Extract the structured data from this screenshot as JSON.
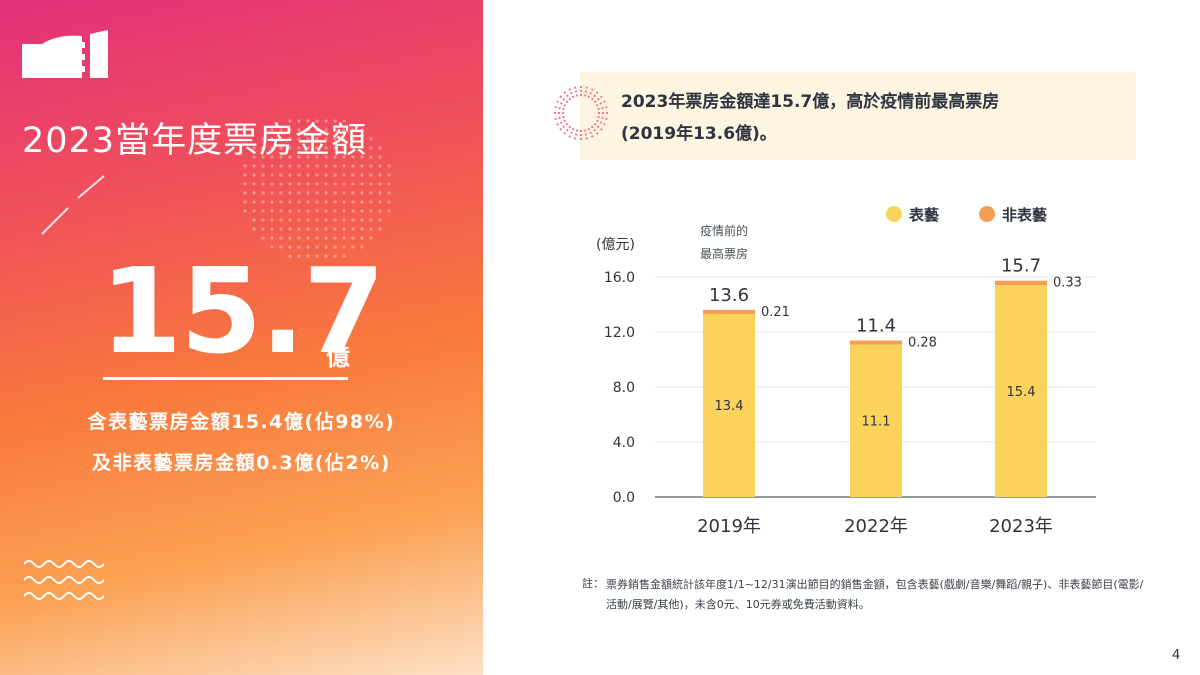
{
  "left_panel": {
    "title": "2023當年度票房金額",
    "big_value": "15.7",
    "big_unit": "億",
    "line1": "含表藝票房金額15.4億(佔98%)",
    "line2": "及非表藝票房金額0.3億(佔2%)"
  },
  "callout": {
    "line1": "2023年票房金額達15.7億，高於疫情前最高票房",
    "line2": "(2019年13.6億)。"
  },
  "colors": {
    "performing_arts": "#fbd35b",
    "non_performing_arts": "#f59e52",
    "axis": "#2f3440",
    "grid": "#e6e6e6"
  },
  "chart_data": {
    "type": "bar",
    "stacked": true,
    "categories": [
      "2019年",
      "2022年",
      "2023年"
    ],
    "series": [
      {
        "name": "表藝",
        "values": [
          13.4,
          11.1,
          15.4
        ]
      },
      {
        "name": "非表藝",
        "values": [
          0.21,
          0.28,
          0.33
        ]
      }
    ],
    "totals": [
      "13.6",
      "11.4",
      "15.7"
    ],
    "segment_labels": [
      "13.4",
      "11.1",
      "15.4"
    ],
    "top_labels": [
      "0.21",
      "0.28",
      "0.33"
    ],
    "ylabel": "(億元)",
    "ylim": [
      0,
      16
    ],
    "yticks": [
      "0.0",
      "4.0",
      "8.0",
      "12.0",
      "16.0"
    ],
    "ytick_values": [
      0,
      4,
      8,
      12,
      16
    ],
    "annotation": [
      "疫情前的",
      "最高票房"
    ],
    "legend_position": "top-right",
    "grid": true
  },
  "note": {
    "label": "註：",
    "text": "票券銷售金額統計該年度1/1~12/31演出節目的銷售金額，包含表藝(戲劇/音樂/舞蹈/親子)、非表藝節目(電影/活動/展覽/其他)，未含0元、10元券或免費活動資料。"
  },
  "page_number": "4"
}
